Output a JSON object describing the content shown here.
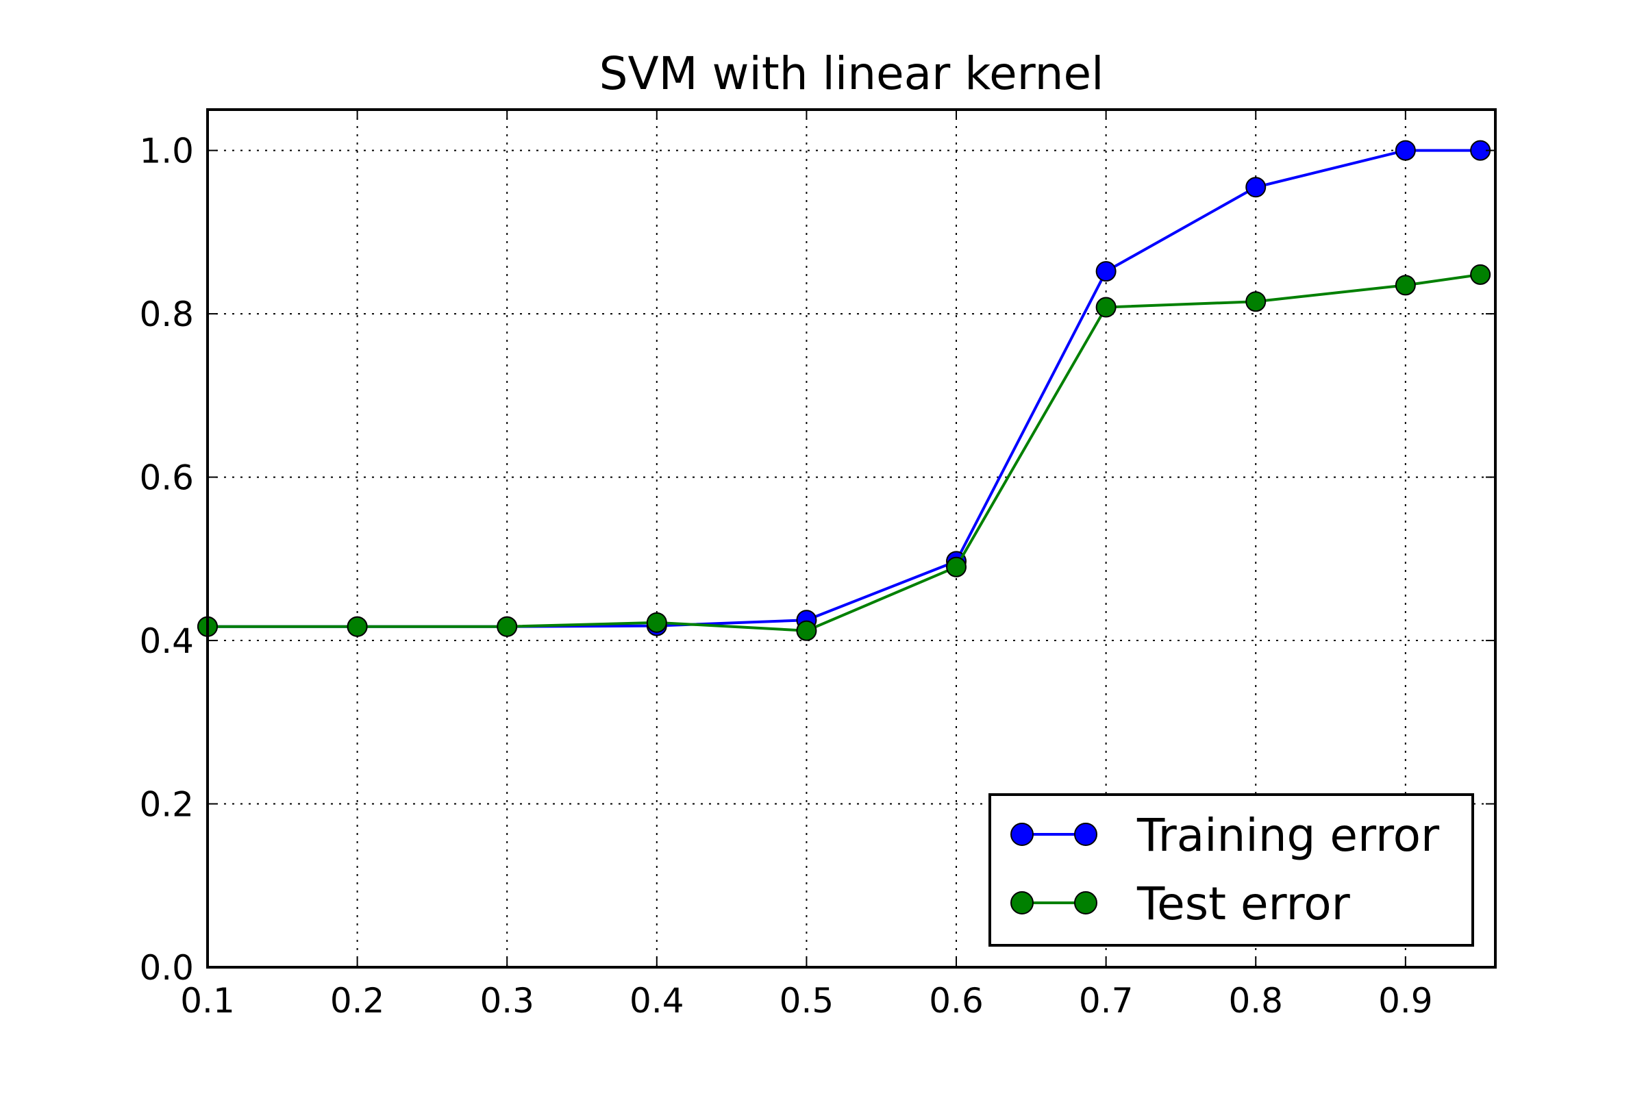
{
  "chart_data": {
    "type": "line",
    "title": "SVM with linear kernel",
    "xlabel": "",
    "ylabel": "",
    "xlim": [
      0.1,
      0.96
    ],
    "ylim": [
      0.0,
      1.05
    ],
    "x_ticks": [
      "0.1",
      "0.2",
      "0.3",
      "0.4",
      "0.5",
      "0.6",
      "0.7",
      "0.8",
      "0.9"
    ],
    "y_ticks": [
      "0.0",
      "0.2",
      "0.4",
      "0.6",
      "0.8",
      "1.0"
    ],
    "grid": true,
    "legend_position": "lower-right",
    "x": [
      0.1,
      0.2,
      0.3,
      0.4,
      0.5,
      0.6,
      0.7,
      0.8,
      0.9,
      0.95
    ],
    "series": [
      {
        "name": "Training error",
        "color": "#0000ff",
        "values": [
          0.417,
          0.417,
          0.417,
          0.418,
          0.425,
          0.497,
          0.852,
          0.955,
          1.0,
          1.0
        ]
      },
      {
        "name": "Test error",
        "color": "#008000",
        "values": [
          0.417,
          0.417,
          0.417,
          0.422,
          0.412,
          0.49,
          0.808,
          0.815,
          0.835,
          0.848
        ]
      }
    ]
  }
}
